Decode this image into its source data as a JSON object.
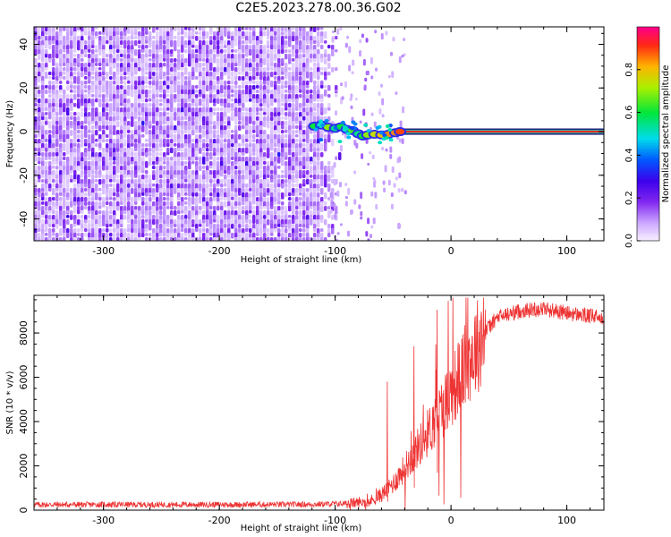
{
  "title": "C2E5.2023.278.00.36.G02",
  "chart_data": [
    {
      "type": "heatmap",
      "xlabel": "Height of straight line (km)",
      "ylabel": "Frequency (Hz)",
      "xlim": [
        -360,
        132
      ],
      "ylim": [
        -50,
        48
      ],
      "xticks": [
        -300,
        -200,
        -100,
        0,
        100
      ],
      "yticks": [
        -40,
        -20,
        0,
        20,
        40
      ],
      "colorbar": {
        "label": "Normalized spectral amplitude",
        "range": [
          0,
          1
        ],
        "ticks": [
          0.0,
          0.2,
          0.4,
          0.6,
          0.8
        ]
      },
      "features": {
        "noise_region_x": [
          -360,
          -105
        ],
        "sparse_region_x": [
          -105,
          -40
        ],
        "carrier_start_x": -118,
        "carrier_frequency_hz": 0,
        "carrier_amplitude": 0.95
      }
    },
    {
      "type": "line",
      "xlabel": "Height of straight line (km)",
      "ylabel": "SNR (10 * v/v)",
      "xlim": [
        -360,
        132
      ],
      "ylim": [
        0,
        9700
      ],
      "xticks": [
        -300,
        -200,
        -100,
        0,
        100
      ],
      "yticks": [
        0,
        2000,
        4000,
        6000,
        8000
      ],
      "color": "#ee3333",
      "series": [
        {
          "x": [
            -360,
            -300,
            -200,
            -120,
            -90,
            -70,
            -60,
            -50,
            -40,
            -30,
            -20,
            -10,
            0,
            10,
            20,
            30,
            40,
            60,
            80,
            100,
            120,
            132
          ],
          "values": [
            250,
            250,
            250,
            260,
            300,
            400,
            700,
            1200,
            1900,
            2700,
            3500,
            4400,
            5300,
            6300,
            7200,
            8100,
            8700,
            9000,
            9100,
            8900,
            8750,
            8700
          ]
        }
      ]
    }
  ]
}
